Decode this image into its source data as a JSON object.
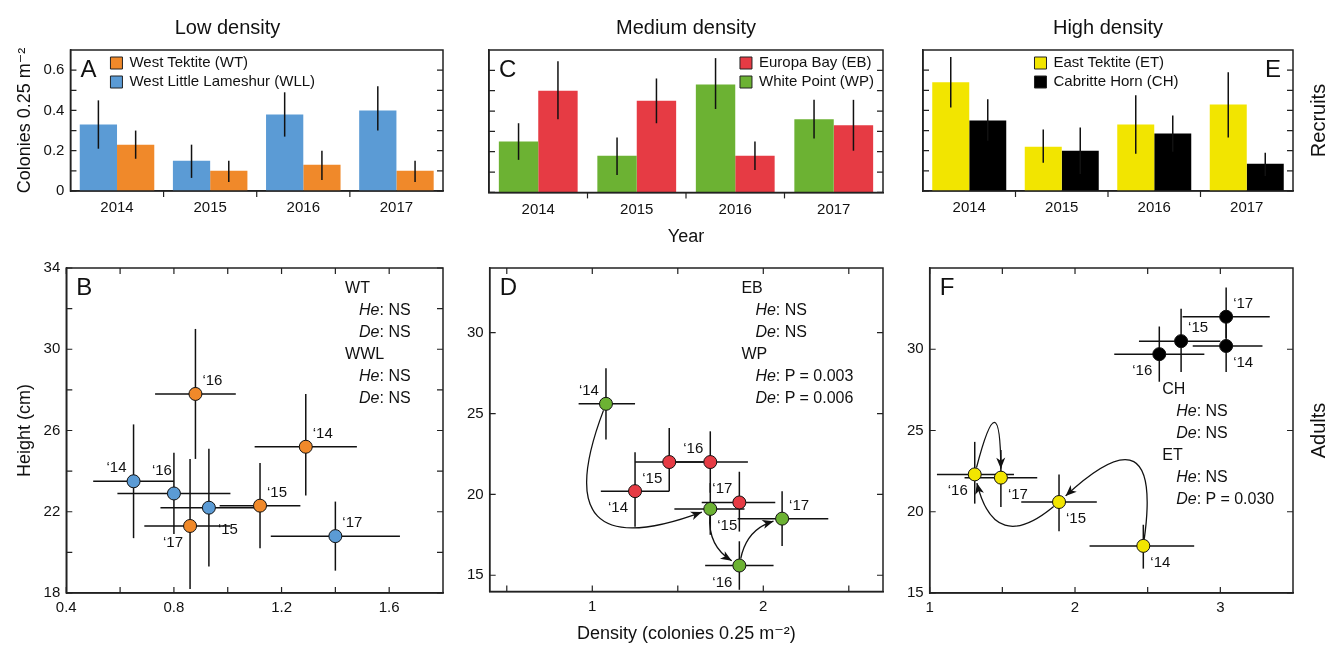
{
  "chart_data": [
    {
      "type": "bar",
      "title": "Low density",
      "ylabel": "Colonies 0.25 m⁻²",
      "categories": [
        "2014",
        "2015",
        "2016",
        "2017"
      ],
      "ylim": [
        0,
        0.7
      ],
      "yticks": [
        0,
        {
          "value": 0.1,
          "label": null
        },
        0.2,
        {
          "value": 0.3,
          "label": null
        },
        0.4,
        {
          "value": 0.5,
          "label": null
        },
        0.6
      ],
      "legend": "top left",
      "annotations": [
        "A"
      ],
      "series": [
        {
          "name": "West Little Lameshur (WLL)",
          "color": "#5b9bd5",
          "values": [
            0.33,
            0.15,
            0.38,
            0.4
          ],
          "errors": [
            [
              0.21,
              0.45
            ],
            [
              0.065,
              0.23
            ],
            [
              0.27,
              0.49
            ],
            [
              0.3,
              0.52
            ]
          ]
        },
        {
          "name": "West Tektite (WT)",
          "color": "#f0892a",
          "values": [
            0.23,
            0.1,
            0.13,
            0.1
          ],
          "errors": [
            [
              0.16,
              0.3
            ],
            [
              0.045,
              0.15
            ],
            [
              0.055,
              0.2
            ],
            [
              0.045,
              0.15
            ]
          ]
        }
      ]
    },
    {
      "type": "bar",
      "title": "Medium density",
      "xlabel": "Year",
      "categories": [
        "2014",
        "2015",
        "2016",
        "2017"
      ],
      "ylim": [
        0,
        0.7
      ],
      "yticks": [
        0,
        {
          "value": 0.1,
          "label": null
        },
        0.2,
        {
          "value": 0.3,
          "label": null
        },
        0.4,
        {
          "value": 0.5,
          "label": null
        },
        0.6
      ],
      "tick_labels": "x",
      "legend": "top right",
      "annotations": [
        "C"
      ],
      "series": [
        {
          "name": "White Point (WP)",
          "color": "#6cb233",
          "values": [
            0.25,
            0.18,
            0.53,
            0.36
          ],
          "errors": [
            [
              0.16,
              0.34
            ],
            [
              0.085,
              0.27
            ],
            [
              0.41,
              0.66
            ],
            [
              0.265,
              0.455
            ]
          ]
        },
        {
          "name": "Europa Bay (EB)",
          "color": "#e63b44",
          "values": [
            0.5,
            0.45,
            0.18,
            0.33
          ],
          "errors": [
            [
              0.36,
              0.645
            ],
            [
              0.34,
              0.56
            ],
            [
              0.11,
              0.25
            ],
            [
              0.205,
              0.455
            ]
          ]
        }
      ]
    },
    {
      "type": "bar",
      "title": "High density",
      "categories": [
        "2014",
        "2015",
        "2016",
        "2017"
      ],
      "ylim": [
        0,
        0.7
      ],
      "yticks": [
        0,
        {
          "value": 0.1,
          "label": null
        },
        0.2,
        {
          "value": 0.3,
          "label": null
        },
        0.4,
        {
          "value": 0.5,
          "label": null
        },
        0.6
      ],
      "tick_labels": "x",
      "legend": "top",
      "annotations": [
        "E",
        "Recruits"
      ],
      "series": [
        {
          "name": "East Tektite (ET)",
          "color": "#f2e500",
          "values": [
            0.54,
            0.22,
            0.33,
            0.43
          ],
          "errors": [
            [
              0.415,
              0.665
            ],
            [
              0.14,
              0.305
            ],
            [
              0.185,
              0.475
            ],
            [
              0.265,
              0.59
            ]
          ]
        },
        {
          "name": "Cabritte Horn (CH)",
          "color": "#000000",
          "values": [
            0.35,
            0.2,
            0.285,
            0.135
          ],
          "errors": [
            [
              0.25,
              0.455
            ],
            [
              0.085,
              0.315
            ],
            [
              0.195,
              0.375
            ],
            [
              0.075,
              0.19
            ]
          ]
        }
      ]
    },
    {
      "type": "scatter",
      "ylabel": "Height (cm)",
      "xlim": [
        0.4,
        1.8
      ],
      "xticks": [
        0.4,
        {
          "value": 0.6,
          "label": null
        },
        0.8,
        {
          "value": 1.0,
          "label": null
        },
        1.2,
        {
          "value": 1.4,
          "label": null
        },
        1.6
      ],
      "ylim": [
        18,
        34
      ],
      "yticks": [
        18,
        {
          "value": 20,
          "label": null
        },
        22,
        {
          "value": 24,
          "label": null
        },
        26,
        {
          "value": 28,
          "label": null
        },
        30,
        {
          "value": 32,
          "label": null
        },
        34
      ],
      "marker": "circle",
      "annotations": [
        "B",
        "WT",
        "He: NS",
        "De: NS",
        "WWL",
        "He: NS",
        "De: NS",
        {
          "text": "‘14",
          "x": 1.29,
          "y": 25.2
        },
        {
          "text": "‘15",
          "x": 1.12,
          "y": 22.3
        },
        {
          "text": "‘16",
          "x": 0.88,
          "y": 27.8
        },
        {
          "text": "‘17",
          "x": 0.86,
          "y": 21.3
        },
        {
          "text": "‘14",
          "x": 0.65,
          "y": 23.5
        },
        {
          "text": "‘15",
          "x": 0.93,
          "y": 22.2
        },
        {
          "text": "‘16",
          "x": 0.8,
          "y": 22.9
        },
        {
          "text": "‘17",
          "x": 1.4,
          "y": 20.8
        }
      ],
      "series": [
        {
          "color": "#f0892a",
          "x": [
            1.29,
            1.12,
            0.88,
            0.86
          ],
          "values": [
            25.2,
            22.3,
            27.8,
            21.3
          ],
          "xerrors": [
            [
              1.1,
              1.48
            ],
            [
              0.97,
              1.27
            ],
            [
              0.73,
              1.03
            ],
            [
              0.69,
              1.01
            ]
          ],
          "errors": [
            [
              22.8,
              27.8
            ],
            [
              20.2,
              24.4
            ],
            [
              24.6,
              31.0
            ],
            [
              18.2,
              24.6
            ]
          ]
        },
        {
          "color": "#5b9bd5",
          "x": [
            0.65,
            0.93,
            0.8,
            1.4
          ],
          "values": [
            23.5,
            22.2,
            22.9,
            20.8
          ],
          "xerrors": [
            [
              0.5,
              0.8
            ],
            [
              0.75,
              1.11
            ],
            [
              0.59,
              1.01
            ],
            [
              1.16,
              1.64
            ]
          ],
          "errors": [
            [
              20.7,
              26.3
            ],
            [
              19.3,
              25.1
            ],
            [
              20.9,
              24.9
            ],
            [
              19.1,
              22.5
            ]
          ]
        }
      ]
    },
    {
      "type": "scatter",
      "xlabel": "Density (colonies 0.25 m⁻²)",
      "xlim": [
        0.4,
        2.7
      ],
      "xticks": [
        {
          "value": 0.5,
          "label": null
        },
        1,
        {
          "value": 1.5,
          "label": null
        },
        2,
        {
          "value": 2.5,
          "label": null
        }
      ],
      "ylim": [
        14,
        34
      ],
      "yticks": [
        15,
        20,
        25,
        30
      ],
      "marker": "circle",
      "annotations": [
        "D",
        "EB",
        "He: NS",
        "De: NS",
        "WP",
        "He: P = 0.003",
        "De: P = 0.006",
        {
          "text": "‘14",
          "x": 1.25,
          "y": 20.2
        },
        {
          "text": "‘15",
          "x": 1.45,
          "y": 22.0
        },
        {
          "text": "‘16",
          "x": 1.69,
          "y": 22.0
        },
        {
          "text": "‘17",
          "x": 1.86,
          "y": 19.5
        },
        {
          "text": "‘14",
          "x": 1.08,
          "y": 25.6
        },
        {
          "text": "‘15",
          "x": 1.69,
          "y": 19.1
        },
        {
          "text": "‘16",
          "x": 1.86,
          "y": 15.6
        },
        {
          "text": "‘17",
          "x": 2.11,
          "y": 18.5
        }
      ],
      "series": [
        {
          "color": "#e63b44",
          "x": [
            1.25,
            1.45,
            1.69,
            1.86
          ],
          "values": [
            20.2,
            22.0,
            22.0,
            19.5
          ],
          "xerrors": [
            [
              1.05,
              1.45
            ],
            [
              1.25,
              1.65
            ],
            [
              1.47,
              1.91
            ],
            [
              1.64,
              2.07
            ]
          ],
          "errors": [
            [
              18.0,
              22.6
            ],
            [
              20.2,
              24.1
            ],
            [
              20.1,
              23.9
            ],
            [
              17.7,
              21.4
            ]
          ]
        },
        {
          "color": "#6cb233",
          "x": [
            1.08,
            1.69,
            1.86,
            2.11
          ],
          "values": [
            25.6,
            19.1,
            15.6,
            18.5
          ],
          "xerrors": [
            [
              0.92,
              1.25
            ],
            [
              1.48,
              1.89
            ],
            [
              1.66,
              2.06
            ],
            [
              1.85,
              2.38
            ]
          ],
          "errors": [
            [
              23.4,
              27.8
            ],
            [
              17.5,
              20.7
            ],
            [
              14.1,
              17.1
            ],
            [
              16.8,
              20.2
            ]
          ]
        }
      ]
    },
    {
      "type": "scatter",
      "xlim": [
        1,
        3.5
      ],
      "xticks": [
        1,
        {
          "value": 1.5,
          "label": null
        },
        2,
        {
          "value": 2.5,
          "label": null
        },
        3
      ],
      "ylim": [
        15,
        35
      ],
      "yticks": [
        15,
        20,
        25,
        30
      ],
      "marker": "circle",
      "annotations": [
        "F",
        "CH",
        "He: NS",
        "De: NS",
        "ET",
        "He: NS",
        "De: P = 0.030",
        "Adults",
        {
          "text": "‘14",
          "x": 3.04,
          "y": 30.2
        },
        {
          "text": "‘15",
          "x": 2.73,
          "y": 30.5
        },
        {
          "text": "‘16",
          "x": 2.58,
          "y": 29.7
        },
        {
          "text": "‘17",
          "x": 3.04,
          "y": 32.0
        },
        {
          "text": "‘14",
          "x": 2.47,
          "y": 17.9
        },
        {
          "text": "‘15",
          "x": 1.89,
          "y": 20.6
        },
        {
          "text": "‘16",
          "x": 1.31,
          "y": 22.3
        },
        {
          "text": "‘17",
          "x": 1.49,
          "y": 22.1
        }
      ],
      "series": [
        {
          "color": "#000000",
          "x": [
            3.04,
            2.73,
            2.58,
            3.04
          ],
          "values": [
            30.2,
            30.5,
            29.7,
            32.0
          ],
          "xerrors": [
            [
              2.81,
              3.29
            ],
            [
              2.44,
              3.0
            ],
            [
              2.27,
              2.89
            ],
            [
              2.74,
              3.34
            ]
          ],
          "errors": [
            [
              28.6,
              31.7
            ],
            [
              28.6,
              32.5
            ],
            [
              28.0,
              31.4
            ],
            [
              30.7,
              33.8
            ]
          ]
        },
        {
          "color": "#f2e500",
          "x": [
            2.47,
            1.89,
            1.31,
            1.49
          ],
          "values": [
            17.9,
            20.6,
            22.3,
            22.1
          ],
          "xerrors": [
            [
              2.1,
              2.82
            ],
            [
              1.63,
              2.15
            ],
            [
              1.05,
              1.58
            ],
            [
              1.24,
              1.74
            ]
          ],
          "errors": [
            [
              16.5,
              19.2
            ],
            [
              18.8,
              22.3
            ],
            [
              20.5,
              24.3
            ],
            [
              20.3,
              23.8
            ]
          ]
        }
      ]
    }
  ]
}
